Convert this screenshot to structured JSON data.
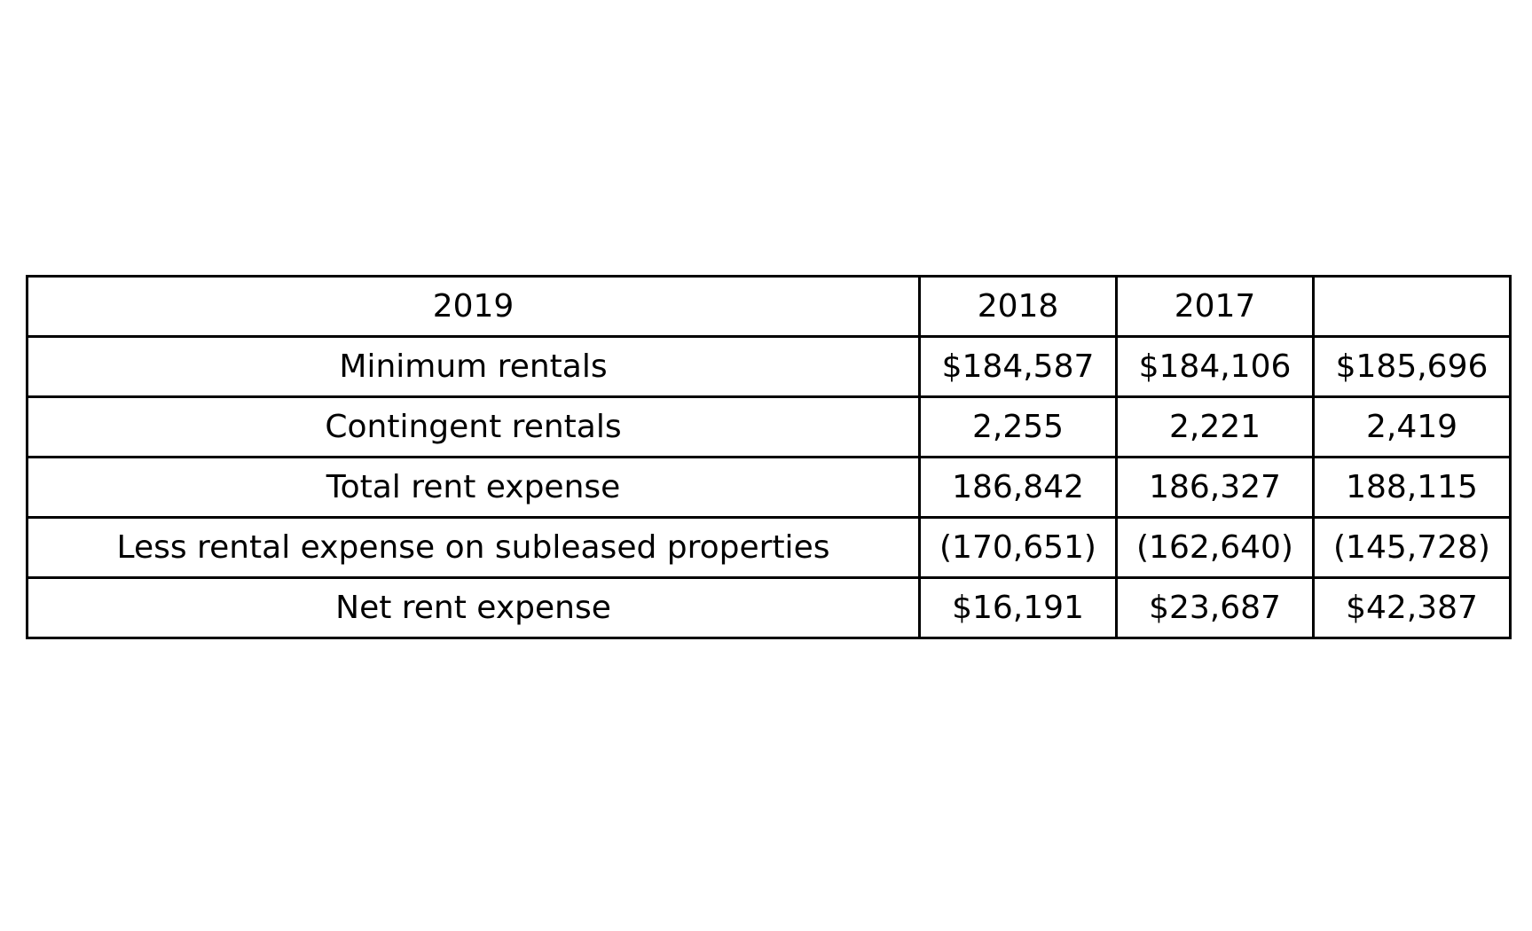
{
  "table": {
    "header": [
      "2019",
      "2018",
      "2017",
      ""
    ],
    "rows": [
      {
        "label": "Minimum rentals",
        "values": [
          "$184,587",
          "$184,106",
          "$185,696"
        ]
      },
      {
        "label": "Contingent rentals",
        "values": [
          "2,255",
          "2,221",
          "2,419"
        ]
      },
      {
        "label": "Total rent expense",
        "values": [
          "186,842",
          "186,327",
          "188,115"
        ]
      },
      {
        "label": "Less rental expense on subleased properties",
        "values": [
          "(170,651)",
          "(162,640)",
          "(145,728)"
        ]
      },
      {
        "label": "Net rent expense",
        "values": [
          "$16,191",
          "$23,687",
          "$42,387"
        ]
      }
    ]
  }
}
